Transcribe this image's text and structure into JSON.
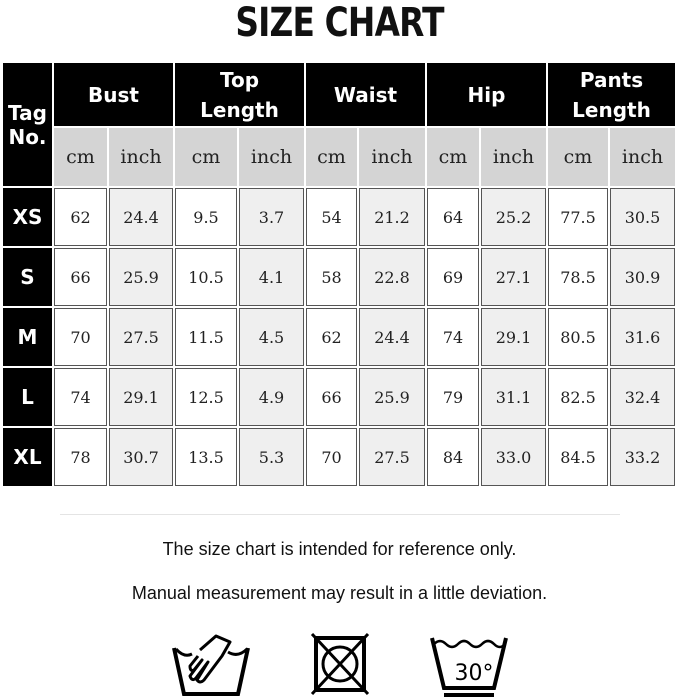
{
  "title": "SIZE CHART",
  "table": {
    "tag_header": [
      "Tag",
      "No."
    ],
    "groups": [
      {
        "lines": [
          "Bust"
        ]
      },
      {
        "lines": [
          "Top",
          "Length"
        ]
      },
      {
        "lines": [
          "Waist"
        ]
      },
      {
        "lines": [
          "Hip"
        ]
      },
      {
        "lines": [
          "Pants",
          "Length"
        ]
      }
    ],
    "units": [
      "cm",
      "inch"
    ],
    "rows": [
      {
        "tag": "XS",
        "values": [
          "62",
          "24.4",
          "9.5",
          "3.7",
          "54",
          "21.2",
          "64",
          "25.2",
          "77.5",
          "30.5"
        ]
      },
      {
        "tag": "S",
        "values": [
          "66",
          "25.9",
          "10.5",
          "4.1",
          "58",
          "22.8",
          "69",
          "27.1",
          "78.5",
          "30.9"
        ]
      },
      {
        "tag": "M",
        "values": [
          "70",
          "27.5",
          "11.5",
          "4.5",
          "62",
          "24.4",
          "74",
          "29.1",
          "80.5",
          "31.6"
        ]
      },
      {
        "tag": "L",
        "values": [
          "74",
          "29.1",
          "12.5",
          "4.9",
          "66",
          "25.9",
          "79",
          "31.1",
          "82.5",
          "32.4"
        ]
      },
      {
        "tag": "XL",
        "values": [
          "78",
          "30.7",
          "13.5",
          "5.3",
          "70",
          "27.5",
          "84",
          "33.0",
          "84.5",
          "33.2"
        ]
      }
    ]
  },
  "notes": [
    "The size chart is intended for reference only.",
    "Manual measurement may result in a little deviation."
  ],
  "care_icons": [
    {
      "name": "hand-wash-icon"
    },
    {
      "name": "do-not-tumble-dry-icon"
    },
    {
      "name": "wash-30-icon",
      "label": "30°"
    }
  ]
}
